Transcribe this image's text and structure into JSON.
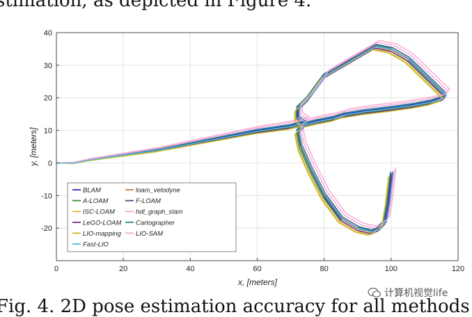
{
  "document": {
    "top_text": "stimation, as depicted in Figure 4.",
    "caption": "Fig. 4. 2D pose estimation accuracy for all methods",
    "watermark": "计算机视觉life"
  },
  "colors": {
    "BLAM": "#2b2fb8",
    "loam_velodyne": "#c87a3c",
    "A-LOAM": "#2e8b3a",
    "F-LOAM": "#3f4f7a",
    "ISC-LOAM": "#f0b040",
    "hdl_graph_slam": "#f7a8cc",
    "LeGO-LOAM": "#7a2c8a",
    "Cartographer": "#1f8a8a",
    "LIO-mapping": "#c8c020",
    "LIO-SAM": "#f2a6e0",
    "Fast-LIO": "#55b8e8"
  },
  "chart_data": {
    "type": "line",
    "title": "",
    "xlabel": "x, [meters]",
    "ylabel": "y, [meters]",
    "xlim": [
      0,
      120
    ],
    "ylim": [
      -30,
      40
    ],
    "xticks": [
      "0",
      "20",
      "40",
      "60",
      "80",
      "100",
      "120"
    ],
    "yticks": [
      "40",
      "30",
      "20",
      "10",
      "0",
      "-10",
      "-20"
    ],
    "grid": true,
    "legend_position": "bottom-left",
    "legend": [
      "BLAM",
      "loam_velodyne",
      "A-LOAM",
      "F-LOAM",
      "ISC-LOAM",
      "hdl_graph_slam",
      "LeGO-LOAM",
      "Cartographer",
      "LIO-mapping",
      "LIO-SAM",
      "Fast-LIO"
    ],
    "base_path": {
      "x": [
        0,
        5,
        10,
        20,
        30,
        40,
        50,
        60,
        70,
        74,
        72,
        72,
        75,
        80,
        85,
        90,
        95,
        100,
        105,
        110,
        114,
        116,
        115,
        112,
        107,
        100,
        92,
        86,
        83,
        78,
        74,
        72,
        73,
        76,
        80,
        85,
        90,
        94,
        96,
        98,
        99,
        100
      ],
      "y": [
        0,
        0,
        1,
        2.5,
        4,
        6,
        8,
        10,
        11.5,
        12.5,
        14,
        17,
        20,
        27,
        30,
        33,
        36,
        35,
        32,
        27,
        23,
        21,
        20,
        19,
        18,
        17,
        16,
        15,
        14,
        13,
        12,
        10,
        5,
        -2,
        -10,
        -17,
        -20,
        -21,
        -20,
        -18,
        -12,
        -3
      ],
      "note_hidden": ""
    },
    "series": [
      {
        "name": "BLAM",
        "dx": 0.0,
        "dy": 0.0
      },
      {
        "name": "loam_velodyne",
        "dx": 0.3,
        "dy": -0.3
      },
      {
        "name": "A-LOAM",
        "dx": -0.3,
        "dy": -0.6
      },
      {
        "name": "F-LOAM",
        "dx": 0.5,
        "dy": 0.4
      },
      {
        "name": "ISC-LOAM",
        "dx": -0.6,
        "dy": -1.0
      },
      {
        "name": "hdl_graph_slam",
        "dx": 1.5,
        "dy": 1.6
      },
      {
        "name": "LeGO-LOAM",
        "dx": 0.2,
        "dy": -0.8
      },
      {
        "name": "Cartographer",
        "dx": -0.2,
        "dy": 0.3
      },
      {
        "name": "LIO-mapping",
        "dx": -0.8,
        "dy": -1.2
      },
      {
        "name": "LIO-SAM",
        "dx": 1.0,
        "dy": 1.0
      },
      {
        "name": "Fast-LIO",
        "dx": 0.6,
        "dy": -0.2
      }
    ]
  }
}
